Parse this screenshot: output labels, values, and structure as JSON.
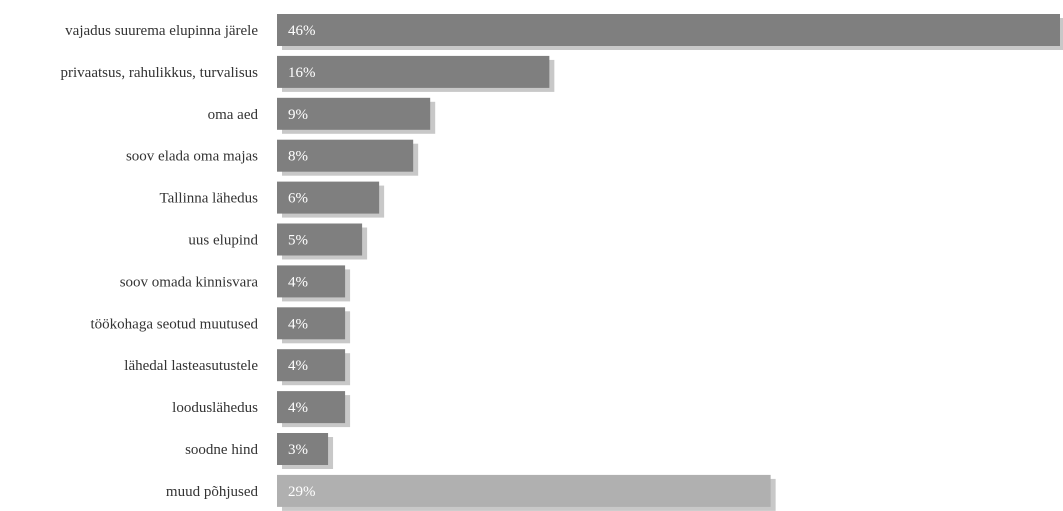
{
  "chart_data": {
    "type": "bar",
    "orientation": "horizontal",
    "categories": [
      "vajadus suurema elupinna järele",
      "privaatsus, rahulikkus, turvalisus",
      "oma aed",
      "soov elada oma majas",
      "Tallinna lähedus",
      "uus elupind",
      "soov omada kinnisvara",
      "töökohaga seotud muutused",
      "lähedal lasteasutustele",
      "looduslähedus",
      "soodne hind",
      "muud põhjused"
    ],
    "values": [
      46,
      16,
      9,
      8,
      6,
      5,
      4,
      4,
      4,
      4,
      3,
      29
    ],
    "value_labels": [
      "46%",
      "16%",
      "9%",
      "8%",
      "6%",
      "5%",
      "4%",
      "4%",
      "4%",
      "4%",
      "3%",
      "29%"
    ],
    "xlim": [
      0,
      46
    ],
    "grid": false,
    "legend": "none",
    "colors": {
      "bar": "#7f7f7f",
      "bar_last": "#b0b0b0",
      "shadow": "#c8c8c8",
      "value_text": "#ffffff",
      "category_text": "#333333"
    }
  }
}
